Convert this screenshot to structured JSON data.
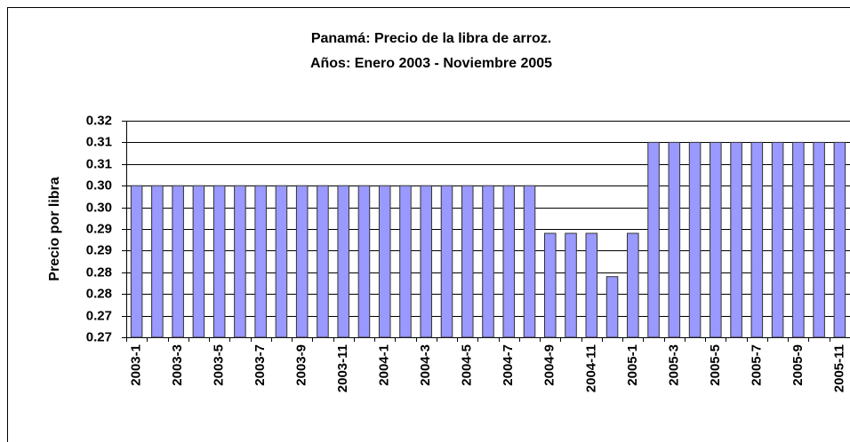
{
  "chart_data": {
    "type": "bar",
    "title": "Panamá: Precio de la libra de arroz.",
    "subtitle": "Años: Enero 2003 - Noviembre 2005",
    "y_label": "Precio por libra",
    "categories": [
      "2003-1",
      null,
      "2003-3",
      null,
      "2003-5",
      null,
      "2003-7",
      null,
      "2003-9",
      null,
      "2003-11",
      null,
      "2004-1",
      null,
      "2004-3",
      null,
      "2004-5",
      null,
      "2004-7",
      null,
      "2004-9",
      null,
      "2004-11",
      null,
      "2005-1",
      null,
      "2005-3",
      null,
      "2005-5",
      null,
      "2005-7",
      null,
      "2005-9",
      null,
      "2005-11"
    ],
    "values": [
      0.305,
      0.305,
      0.305,
      0.305,
      0.305,
      0.305,
      0.305,
      0.305,
      0.305,
      0.305,
      0.305,
      0.305,
      0.305,
      0.305,
      0.305,
      0.305,
      0.305,
      0.305,
      0.305,
      0.305,
      0.294,
      0.294,
      0.294,
      0.284,
      0.294,
      0.315,
      0.315,
      0.315,
      0.315,
      0.315,
      0.315,
      0.315,
      0.315,
      0.315,
      0.315
    ],
    "color": "#9999ff",
    "ylim": [
      0.27,
      0.32
    ],
    "yticks": [
      0.27,
      {
        "value": 0.275,
        "label": "0.27"
      },
      0.28,
      {
        "value": 0.285,
        "label": "0.28"
      },
      0.29,
      {
        "value": 0.295,
        "label": "0.29"
      },
      {
        "value": 0.3,
        "label": "0.30"
      },
      {
        "value": 0.305,
        "label": "0.30"
      },
      0.31,
      {
        "value": 0.315,
        "label": "0.31"
      },
      0.32
    ],
    "grid": true
  }
}
